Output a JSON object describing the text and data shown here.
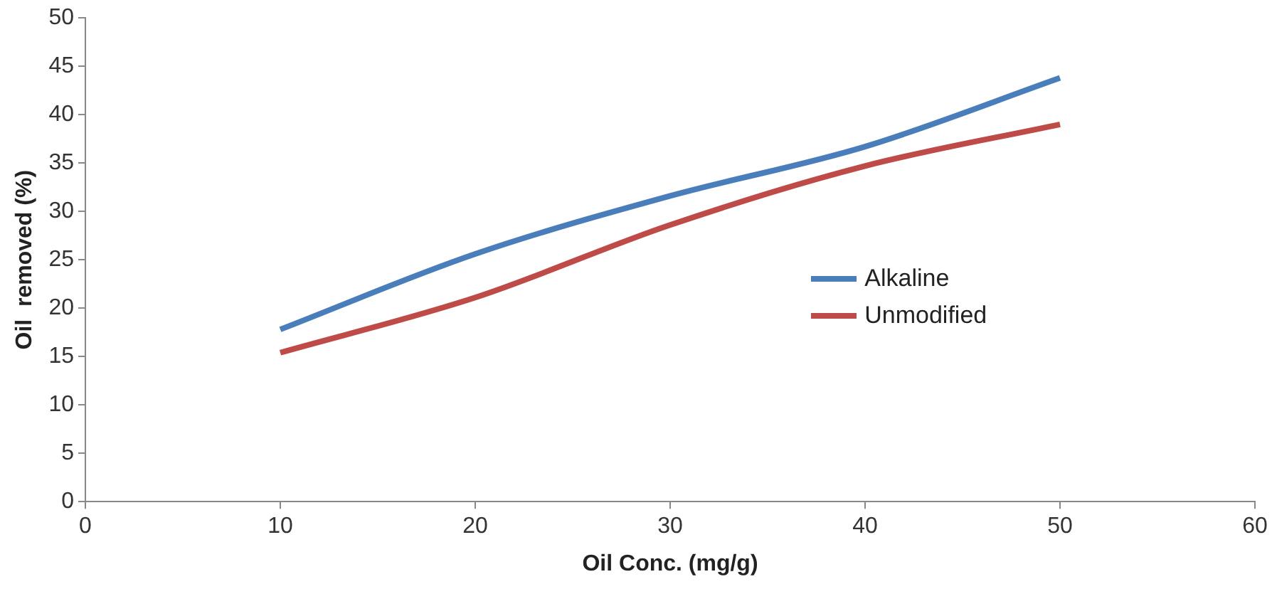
{
  "chart_data": {
    "type": "line",
    "xlabel": "Oil Conc. (mg/g)",
    "ylabel": "Oil  removed (%)",
    "x": [
      10,
      20,
      30,
      40,
      50
    ],
    "series": [
      {
        "name": "Alkaline",
        "color": "#4a7ebb",
        "values": [
          17.8,
          25.6,
          31.6,
          36.7,
          43.8
        ]
      },
      {
        "name": "Unmodified",
        "color": "#be4b48",
        "values": [
          15.4,
          21.1,
          28.6,
          34.7,
          39
        ]
      }
    ],
    "xlim": [
      0,
      60
    ],
    "xticks": [
      0,
      10,
      20,
      30,
      40,
      50,
      60
    ],
    "ylim": [
      0,
      50
    ],
    "yticks": [
      0,
      5,
      10,
      15,
      20,
      25,
      30,
      35,
      40,
      45,
      50
    ],
    "grid": false,
    "legend": "right",
    "marker": "none",
    "line_style": "solid"
  }
}
